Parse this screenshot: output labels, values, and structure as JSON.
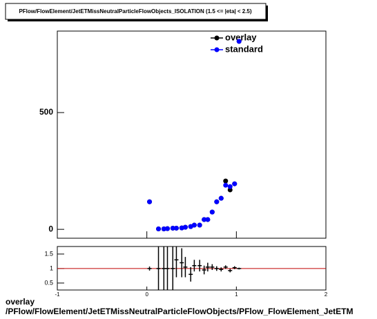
{
  "chart_data": [
    {
      "type": "scatter",
      "title": "PFlow/FlowElement/JetETMissNeutralParticleFlowObjects_ISOLATION (1.5 <= |eta| < 2.5)",
      "x": [
        0.03,
        0.13,
        0.19,
        0.23,
        0.29,
        0.33,
        0.39,
        0.43,
        0.49,
        0.53,
        0.59,
        0.64,
        0.68,
        0.73,
        0.78,
        0.83,
        0.88,
        0.93,
        0.98,
        1.03
      ],
      "series": [
        {
          "name": "overlay",
          "color": "#000000",
          "values": [
            118,
            2,
            2,
            3,
            5,
            5,
            6,
            9,
            12,
            18,
            18,
            42,
            42,
            74,
            118,
            133,
            207,
            169,
            195,
            805
          ]
        },
        {
          "name": "standard",
          "color": "#0000ff",
          "values": [
            118,
            2,
            2,
            3,
            5,
            5,
            6,
            9,
            12,
            18,
            18,
            42,
            42,
            74,
            118,
            133,
            189,
            183,
            195,
            805
          ]
        }
      ],
      "xlim": [
        -1,
        2
      ],
      "xticks": [
        -1,
        0,
        1,
        2
      ],
      "ylim": [
        -38,
        849
      ],
      "yticks": [
        0,
        500
      ]
    },
    {
      "type": "ratio",
      "x": [
        0.03,
        0.13,
        0.19,
        0.23,
        0.29,
        0.33,
        0.39,
        0.43,
        0.49,
        0.53,
        0.59,
        0.64,
        0.68,
        0.73,
        0.78,
        0.83,
        0.88,
        0.93,
        0.98,
        1.03
      ],
      "values": [
        1.0,
        1.0,
        1.0,
        1.0,
        1.0,
        1.3,
        1.2,
        1.05,
        0.8,
        1.1,
        1.1,
        0.95,
        1.05,
        1.05,
        1.0,
        0.97,
        1.05,
        0.93,
        1.03,
        1.0
      ],
      "errors": [
        0.07,
        0.9,
        0.9,
        0.9,
        0.9,
        0.6,
        0.5,
        0.35,
        0.25,
        0.2,
        0.2,
        0.15,
        0.15,
        0.1,
        0.08,
        0.07,
        0.06,
        0.06,
        0.05,
        0.03
      ],
      "ref_line": 1,
      "ref_color": "#c00000",
      "xlim": [
        -1,
        2
      ],
      "xticks": [
        -1,
        0,
        1,
        2
      ],
      "ylim": [
        0.26,
        1.76
      ],
      "yticks": [
        0.5,
        1,
        1.5
      ],
      "xlabel_lines": [
        "overlay",
        "/PFlow/FlowElement/JetETMissNeutralParticleFlowObjects/PFlow_FlowElement_JetETM"
      ]
    }
  ]
}
